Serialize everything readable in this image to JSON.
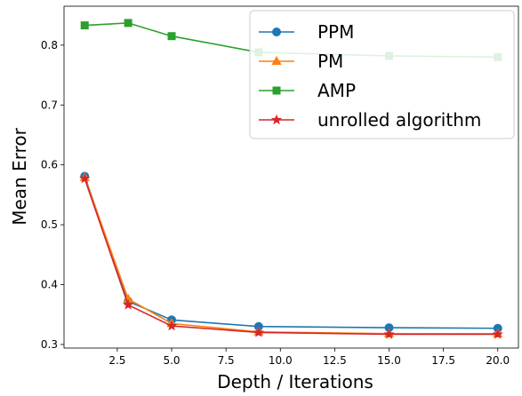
{
  "chart_data": {
    "type": "line",
    "title": "",
    "xlabel": "Depth / Iterations",
    "ylabel": "Mean Error",
    "xlim": [
      0.05,
      20.95
    ],
    "ylim": [
      0.294,
      0.865
    ],
    "x_ticks": [
      2.5,
      5.0,
      7.5,
      10.0,
      12.5,
      15.0,
      17.5,
      20.0
    ],
    "x_tick_labels": [
      "2.5",
      "5.0",
      "7.5",
      "10.0",
      "12.5",
      "15.0",
      "17.5",
      "20.0"
    ],
    "y_ticks": [
      0.3,
      0.4,
      0.5,
      0.6,
      0.7,
      0.8
    ],
    "y_tick_labels": [
      "0.3",
      "0.4",
      "0.5",
      "0.6",
      "0.7",
      "0.8"
    ],
    "grid": false,
    "legend_position": "top-right",
    "series": [
      {
        "name": "PPM",
        "color": "#1f77b4",
        "marker": "circle",
        "x": [
          1,
          3,
          5,
          9,
          15,
          20
        ],
        "y": [
          0.581,
          0.372,
          0.341,
          0.33,
          0.328,
          0.327
        ]
      },
      {
        "name": "PM",
        "color": "#ff7f0e",
        "marker": "triangle",
        "x": [
          1,
          3,
          5,
          9,
          15,
          20
        ],
        "y": [
          0.579,
          0.376,
          0.335,
          0.321,
          0.318,
          0.318
        ]
      },
      {
        "name": "AMP",
        "color": "#2ca02c",
        "marker": "square",
        "x": [
          1,
          3,
          5,
          9,
          15,
          20
        ],
        "y": [
          0.833,
          0.837,
          0.815,
          0.788,
          0.782,
          0.78
        ]
      },
      {
        "name": "unrolled algorithm",
        "color": "#d62728",
        "marker": "star",
        "x": [
          1,
          3,
          5,
          9,
          15,
          20
        ],
        "y": [
          0.577,
          0.366,
          0.331,
          0.32,
          0.317,
          0.317
        ]
      }
    ]
  }
}
